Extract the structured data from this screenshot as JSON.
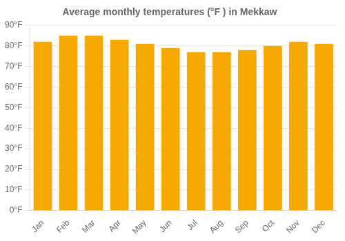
{
  "chart_data": {
    "type": "bar",
    "title": "Average monthly temperatures (°F ) in Mekkaw",
    "categories": [
      "Jan",
      "Feb",
      "Mar",
      "Apr",
      "May",
      "Jun",
      "Jul",
      "Aug",
      "Sep",
      "Oct",
      "Nov",
      "Dec"
    ],
    "values": [
      82,
      85,
      85,
      83,
      81,
      79,
      77,
      77,
      78,
      80,
      82,
      81
    ],
    "color": "#F5A800",
    "ylim": [
      0,
      90
    ],
    "yticks": [
      {
        "value": 0,
        "label": "0°F"
      },
      {
        "value": 10,
        "label": "10°F"
      },
      {
        "value": 20,
        "label": "20°F"
      },
      {
        "value": 30,
        "label": "30°F"
      },
      {
        "value": 40,
        "label": "40°F"
      },
      {
        "value": 50,
        "label": "50°F"
      },
      {
        "value": 60,
        "label": "60°F"
      },
      {
        "value": 70,
        "label": "70°F"
      },
      {
        "value": 80,
        "label": "80°F"
      },
      {
        "value": 90,
        "label": "90°F"
      }
    ],
    "grid": true
  }
}
